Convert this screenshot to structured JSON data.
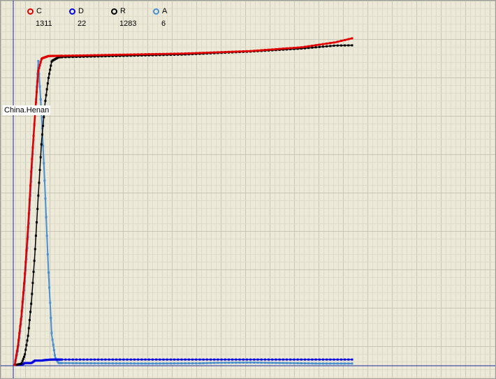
{
  "region_label": "China.Henan",
  "legend": [
    {
      "key": "C",
      "name": "C",
      "value": "1311",
      "color": "#e00000"
    },
    {
      "key": "D",
      "name": "D",
      "value": "22",
      "color": "#0000e0"
    },
    {
      "key": "R",
      "name": "R",
      "value": "1283",
      "color": "#000000"
    },
    {
      "key": "A",
      "name": "A",
      "value": "6",
      "color": "#4a8fd0"
    }
  ],
  "chart_data": {
    "type": "line",
    "title": "",
    "xlabel": "",
    "ylabel": "",
    "grid": true,
    "legend_position": "top-left",
    "x_range": [
      0,
      100
    ],
    "y_range": [
      0,
      1350
    ],
    "series": [
      {
        "name": "C",
        "color": "#e00000",
        "points": [
          [
            0,
            0
          ],
          [
            1,
            80
          ],
          [
            2,
            200
          ],
          [
            3,
            360
          ],
          [
            4,
            560
          ],
          [
            5,
            800
          ],
          [
            6,
            1000
          ],
          [
            7,
            1180
          ],
          [
            8,
            1230
          ],
          [
            10,
            1240
          ],
          [
            30,
            1245
          ],
          [
            50,
            1250
          ],
          [
            70,
            1260
          ],
          [
            85,
            1275
          ],
          [
            95,
            1295
          ],
          [
            100,
            1311
          ]
        ]
      },
      {
        "name": "D",
        "color": "#0000e0",
        "points": [
          [
            0,
            0
          ],
          [
            2,
            0
          ],
          [
            3,
            8
          ],
          [
            5,
            8
          ],
          [
            6,
            18
          ],
          [
            8,
            18
          ],
          [
            9,
            20
          ],
          [
            11,
            22
          ],
          [
            100,
            22
          ]
        ]
      },
      {
        "name": "R",
        "color": "#000000",
        "points": [
          [
            0,
            0
          ],
          [
            2,
            5
          ],
          [
            3,
            40
          ],
          [
            4,
            120
          ],
          [
            5,
            260
          ],
          [
            6,
            450
          ],
          [
            7,
            680
          ],
          [
            8,
            900
          ],
          [
            9,
            1050
          ],
          [
            10,
            1150
          ],
          [
            11,
            1220
          ],
          [
            13,
            1235
          ],
          [
            30,
            1240
          ],
          [
            50,
            1246
          ],
          [
            70,
            1258
          ],
          [
            85,
            1270
          ],
          [
            95,
            1282
          ],
          [
            100,
            1283
          ]
        ]
      },
      {
        "name": "A",
        "color": "#4a8fd0",
        "points": [
          [
            0,
            0
          ],
          [
            1,
            60
          ],
          [
            2,
            180
          ],
          [
            3,
            330
          ],
          [
            4,
            520
          ],
          [
            5,
            760
          ],
          [
            6,
            1000
          ],
          [
            7,
            1220
          ],
          [
            8,
            1000
          ],
          [
            9,
            700
          ],
          [
            10,
            380
          ],
          [
            11,
            120
          ],
          [
            12,
            30
          ],
          [
            13,
            8
          ],
          [
            20,
            7
          ],
          [
            40,
            6
          ],
          [
            55,
            7
          ],
          [
            60,
            9
          ],
          [
            70,
            10
          ],
          [
            80,
            8
          ],
          [
            90,
            6
          ],
          [
            100,
            6
          ]
        ]
      }
    ]
  }
}
